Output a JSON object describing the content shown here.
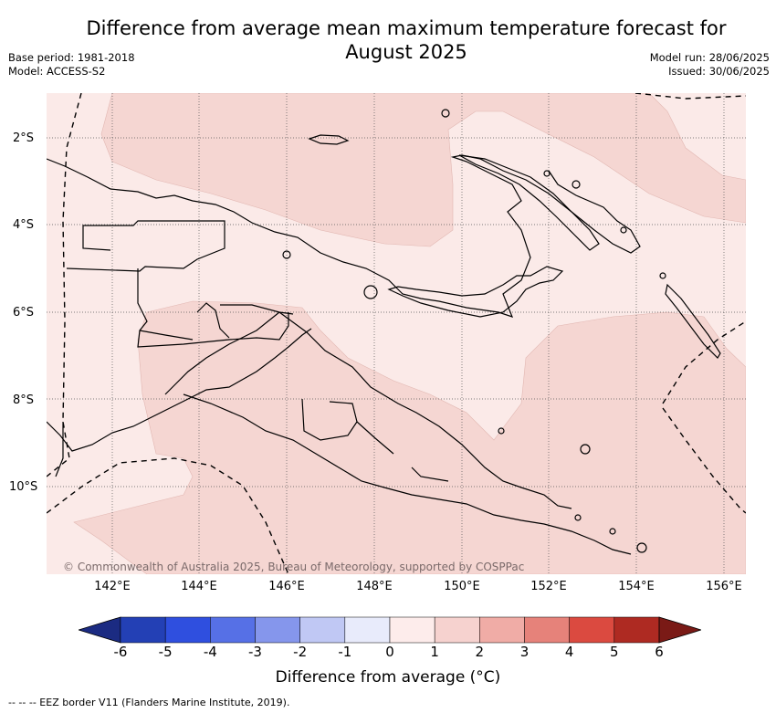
{
  "header": {
    "title_line1": "Difference from average mean maximum temperature forecast for",
    "title_line2": "August 2025",
    "base_period": "Base period: 1981-2018",
    "model": "Model: ACCESS-S2",
    "model_run": "Model run: 28/06/2025",
    "issued": "Issued: 30/06/2025"
  },
  "map": {
    "lat_labels": [
      "2°S",
      "4°S",
      "6°S",
      "8°S",
      "10°S"
    ],
    "lon_labels": [
      "142°E",
      "144°E",
      "146°E",
      "148°E",
      "150°E",
      "152°E",
      "154°E",
      "156°E"
    ],
    "credit": "© Commonwealth of Australia 2025, Bureau of Meteorology, supported by COSPPac",
    "colors": {
      "band_0_1": "#fbeae8",
      "band_1_2": "#f5d6d2",
      "border": "#000000"
    }
  },
  "colorbar": {
    "title": "Difference from average (°C)",
    "ticks": [
      "-6",
      "-5",
      "-4",
      "-3",
      "-2",
      "-1",
      "0",
      "1",
      "2",
      "3",
      "4",
      "5",
      "6"
    ],
    "colors": [
      "#1b2b82",
      "#2340b5",
      "#2f4fdf",
      "#5670e6",
      "#8596ec",
      "#c0c8f4",
      "#e8ebfb",
      "#fdeceb",
      "#f6d2cf",
      "#f0aca6",
      "#e6827a",
      "#db4a40",
      "#ae2a22",
      "#7a1a16"
    ]
  },
  "footer": {
    "legend": "--  --  -- EEZ border V11 (Flanders Marine Institute, 2019)."
  }
}
